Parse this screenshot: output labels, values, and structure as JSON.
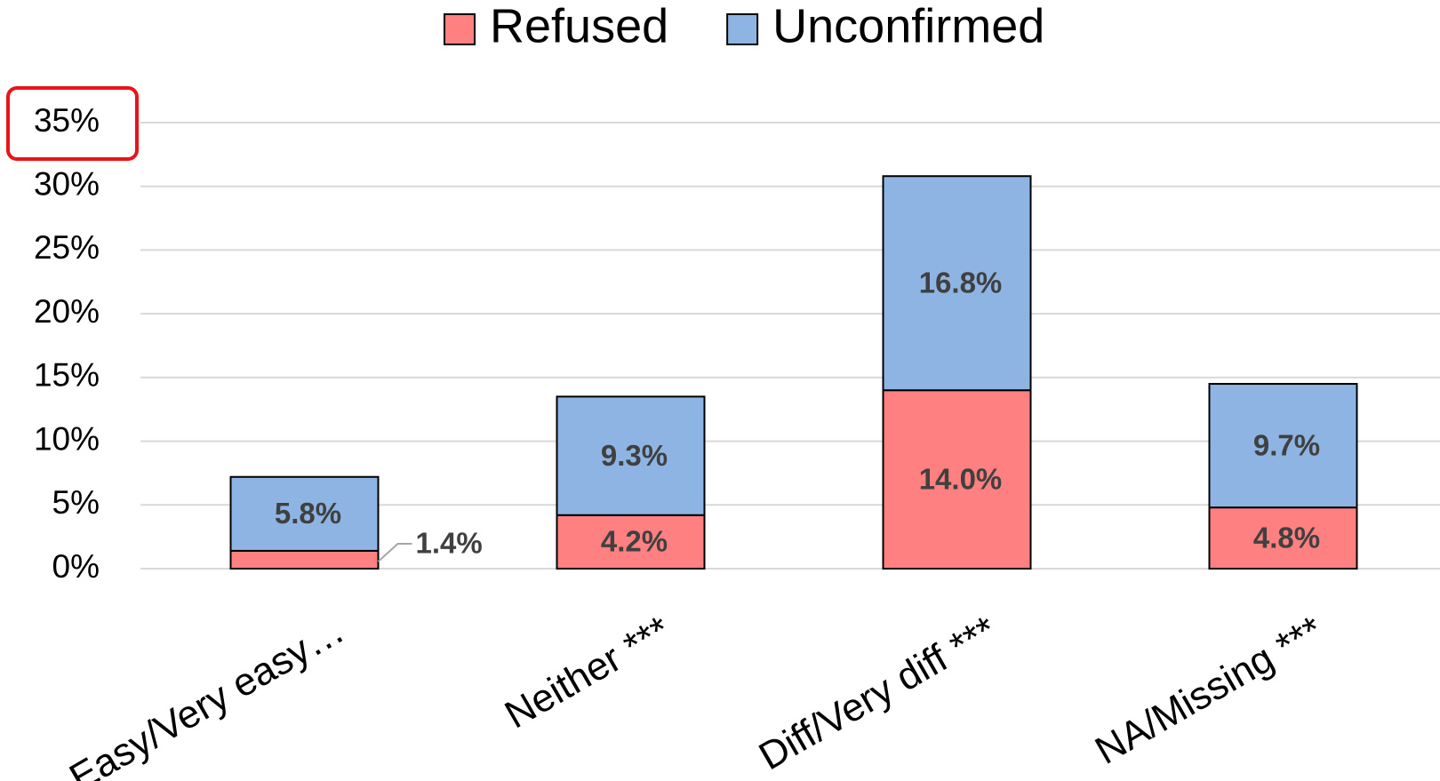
{
  "chart_data": {
    "type": "stacked_bar",
    "categories": [
      "Easy/Very easy…",
      "Neither ***",
      "Diff/Very diff ***",
      "NA/Missing ***"
    ],
    "series": [
      {
        "name": "Refused",
        "color": "#ff8080",
        "values": [
          1.4,
          4.2,
          14.0,
          4.8
        ],
        "value_labels": [
          "1.4%",
          "4.2%",
          "14.0%",
          "4.8%"
        ]
      },
      {
        "name": "Unconfirmed",
        "color": "#8db4e2",
        "values": [
          5.8,
          9.3,
          16.8,
          9.7
        ],
        "value_labels": [
          "5.8%",
          "9.3%",
          "16.8%",
          "9.7%"
        ]
      }
    ],
    "ylim": [
      0,
      35
    ],
    "yticks": [
      {
        "value": 0,
        "label": "0%"
      },
      {
        "value": 5,
        "label": "5%"
      },
      {
        "value": 10,
        "label": "10%"
      },
      {
        "value": 15,
        "label": "15%"
      },
      {
        "value": 20,
        "label": "20%"
      },
      {
        "value": 25,
        "label": "25%"
      },
      {
        "value": 30,
        "label": "30%"
      },
      {
        "value": 35,
        "label": "35%"
      }
    ],
    "grid": true,
    "legend": "top"
  }
}
